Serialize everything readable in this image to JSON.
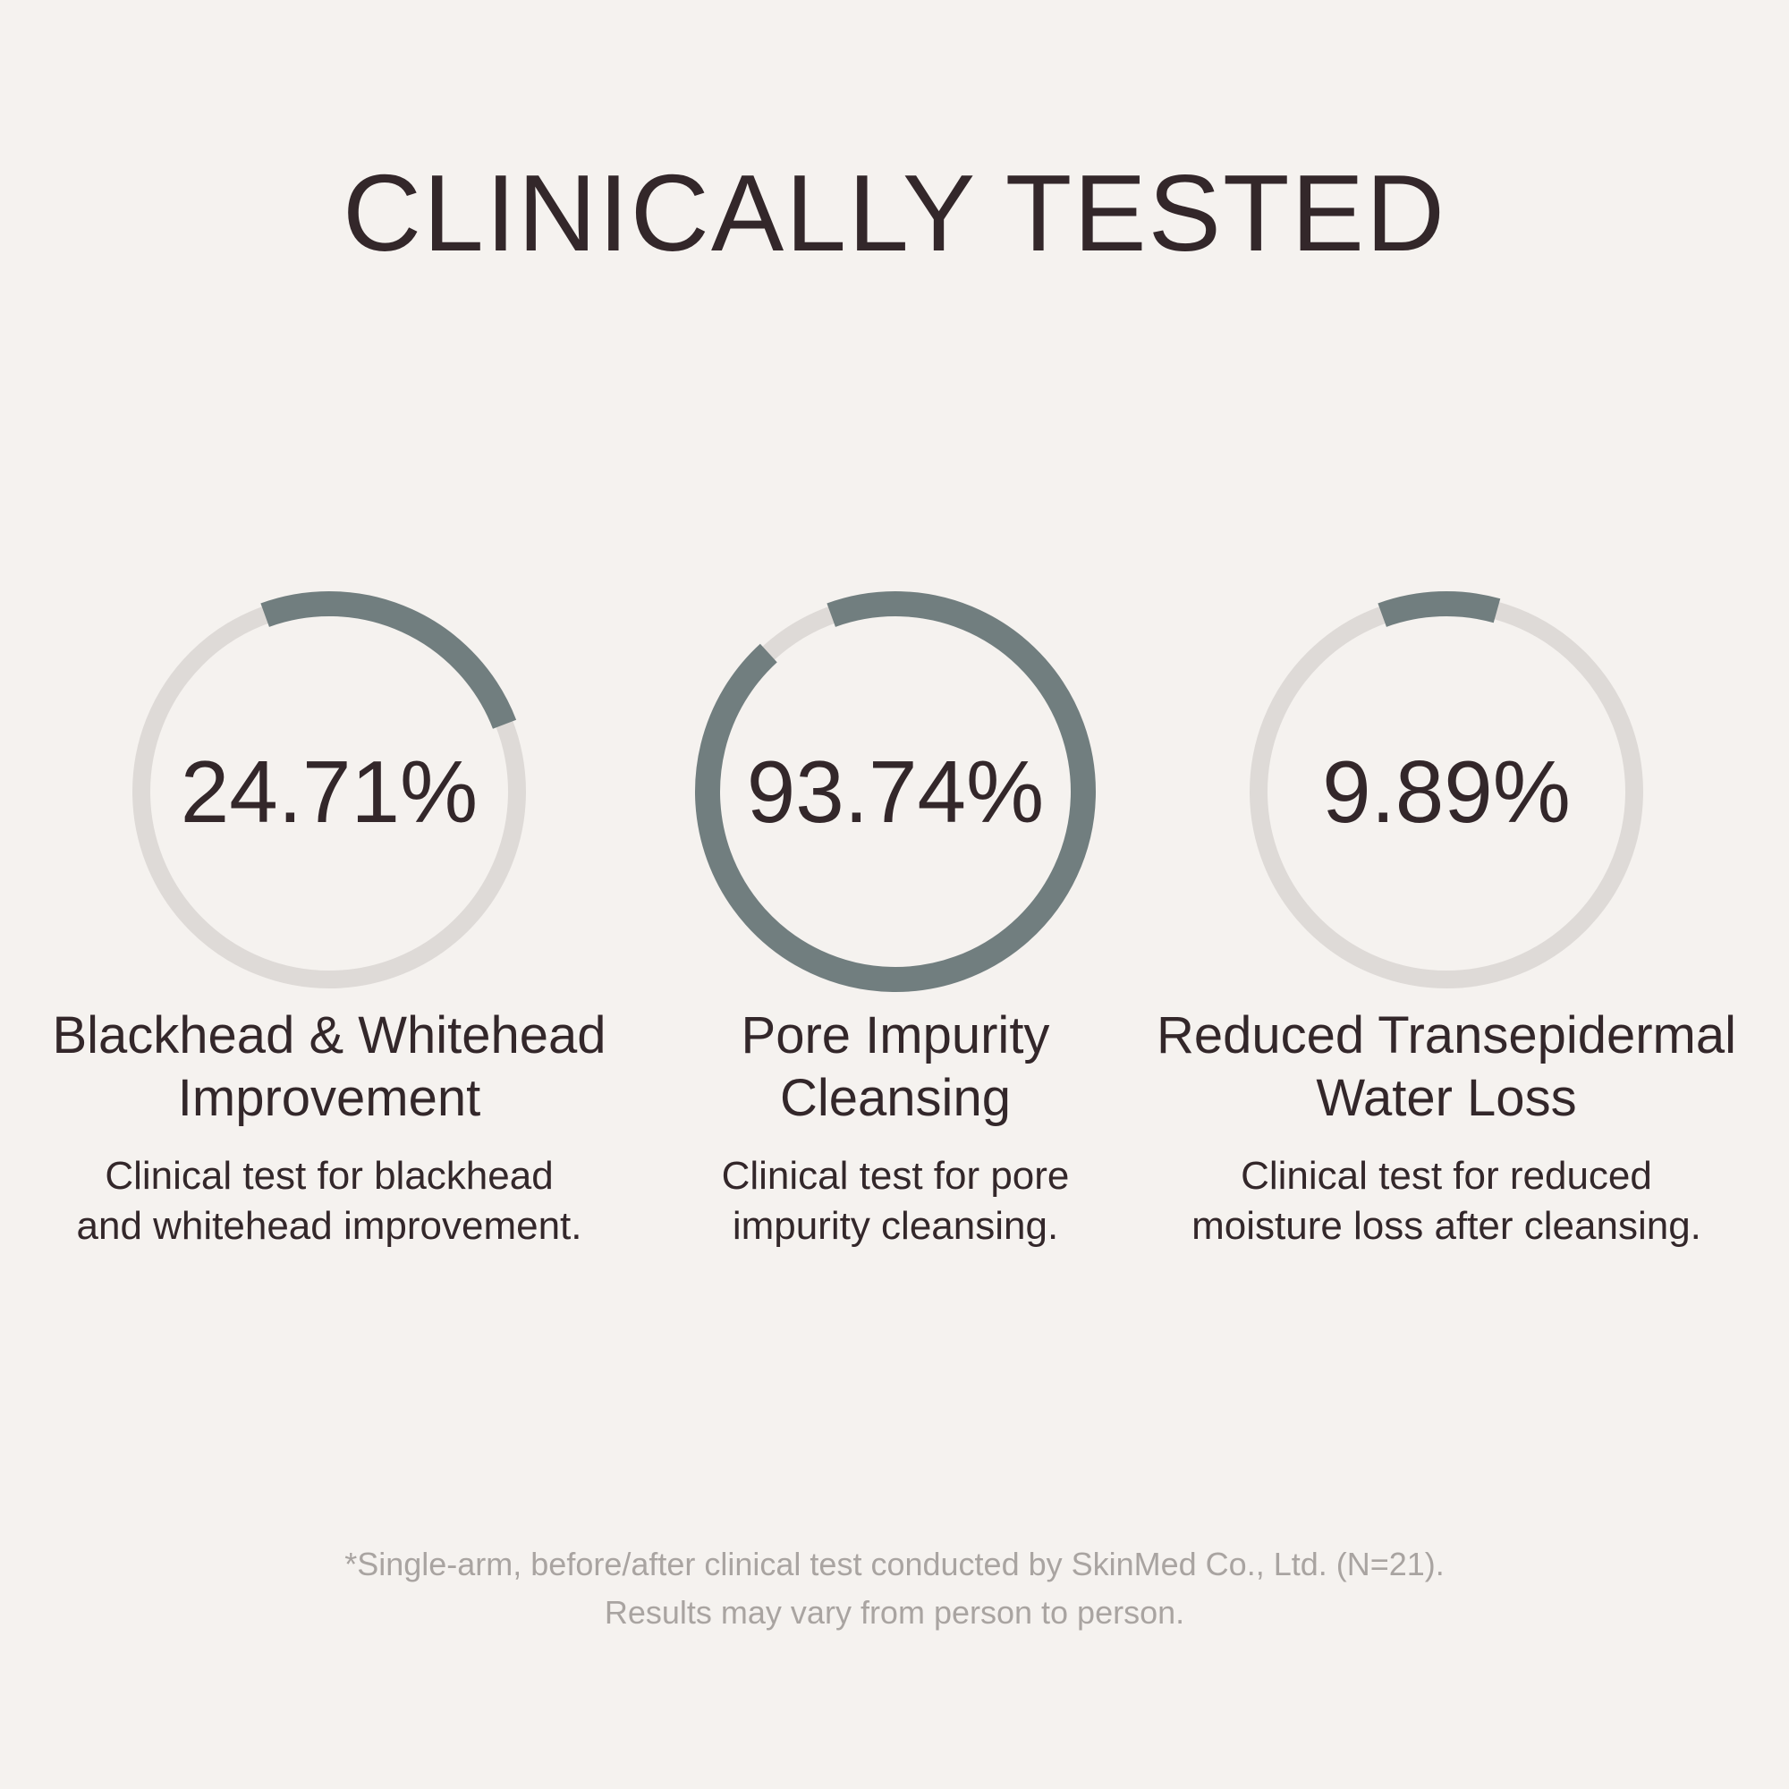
{
  "title": "CLINICALLY TESTED",
  "colors": {
    "background": "#f5f2ef",
    "text": "#33272a",
    "ring_track": "#dedad7",
    "ring_fill": "#717e7f",
    "disclaimer_text": "#a9a4a1"
  },
  "stats": [
    {
      "value_label": "24.71%",
      "percent": 24.71,
      "title_line1": "Blackhead & Whitehead",
      "title_line2": "Improvement",
      "desc_line1": "Clinical test for blackhead",
      "desc_line2": "and whitehead improvement."
    },
    {
      "value_label": "93.74%",
      "percent": 93.74,
      "title_line1": "Pore Impurity",
      "title_line2": "Cleansing",
      "desc_line1": "Clinical test for pore",
      "desc_line2": "impurity cleansing."
    },
    {
      "value_label": "9.89%",
      "percent": 9.89,
      "title_line1": "Reduced Transepidermal",
      "title_line2": "Water Loss",
      "desc_line1": "Clinical test for reduced",
      "desc_line2": "moisture loss after cleansing."
    }
  ],
  "disclaimer": {
    "line1": "*Single-arm, before/after clinical test conducted by SkinMed Co., Ltd. (N=21).",
    "line2": "Results may vary from person to person."
  }
}
